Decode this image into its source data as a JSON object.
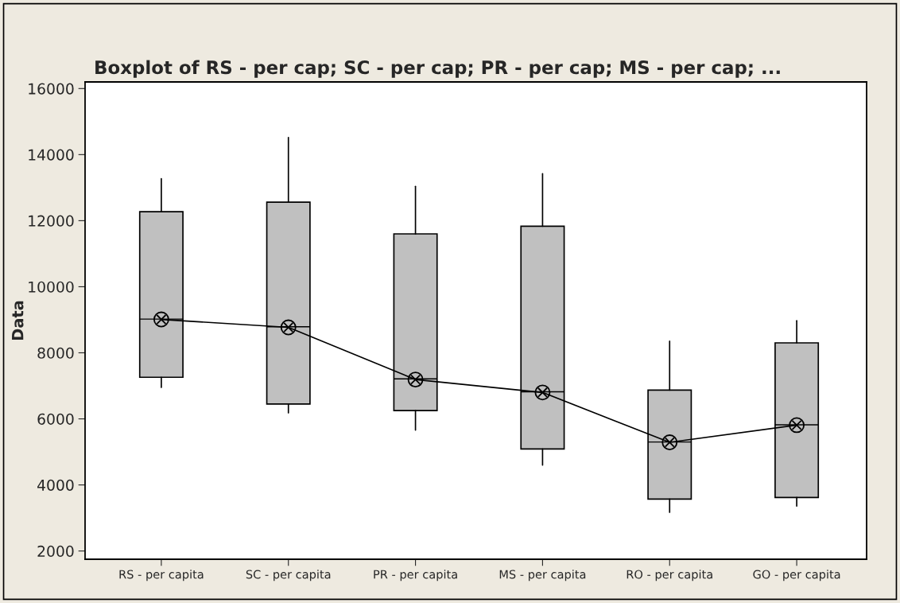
{
  "chart_data": {
    "type": "box",
    "title": "Boxplot of RS - per cap; SC - per cap; PR - per cap; MS - per cap; ...",
    "ylabel": "Data",
    "categories": [
      "RS - per capita",
      "SC - per capita",
      "PR - per capita",
      "MS - per capita",
      "RO - per capita",
      "GO - per capita"
    ],
    "ylim": [
      1750,
      16200
    ],
    "yticks": [
      2000,
      4000,
      6000,
      8000,
      10000,
      12000,
      14000,
      16000
    ],
    "grid": false,
    "boxes": [
      {
        "low": 6950,
        "q1": 7260,
        "median": 9020,
        "q3": 12270,
        "high": 13270
      },
      {
        "low": 6180,
        "q1": 6450,
        "median": 8790,
        "q3": 12560,
        "high": 14520
      },
      {
        "low": 5660,
        "q1": 6250,
        "median": 7210,
        "q3": 11600,
        "high": 13040
      },
      {
        "low": 4600,
        "q1": 5090,
        "median": 6820,
        "q3": 11830,
        "high": 13420
      },
      {
        "low": 3170,
        "q1": 3570,
        "median": 5300,
        "q3": 6870,
        "high": 8350
      },
      {
        "low": 3360,
        "q1": 3620,
        "median": 5820,
        "q3": 8300,
        "high": 8970
      }
    ],
    "color": "#c0c0c0",
    "series": [
      {
        "type": "line",
        "color": "#000000",
        "marker": "cross",
        "values": [
          9010,
          8770,
          7190,
          6800,
          5290,
          5810
        ]
      }
    ]
  }
}
